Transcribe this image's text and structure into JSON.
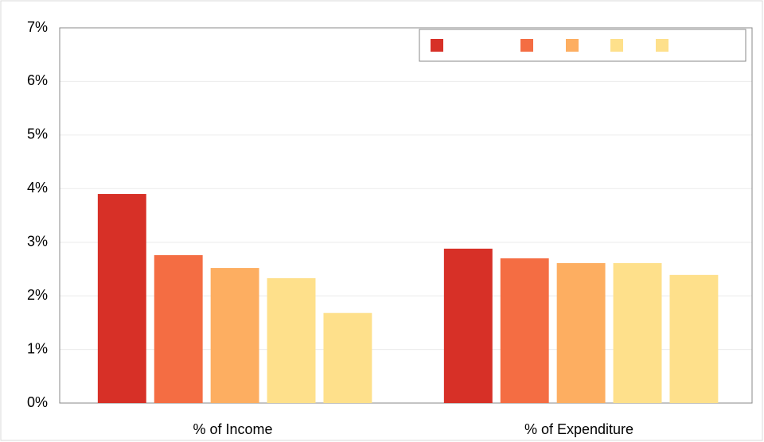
{
  "chart_data": {
    "type": "bar",
    "categories": [
      "% of Income",
      "% of Expenditure"
    ],
    "series": [
      {
        "color": "#d73027",
        "values": [
          3.9,
          2.88
        ]
      },
      {
        "color": "#f46d43",
        "values": [
          2.76,
          2.7
        ]
      },
      {
        "color": "#fdae61",
        "values": [
          2.52,
          2.61
        ]
      },
      {
        "color": "#fee08b",
        "values": [
          2.33,
          2.61
        ]
      },
      {
        "color": "#fee08b",
        "values": [
          1.68,
          2.39
        ]
      }
    ],
    "ylim": [
      0,
      7
    ],
    "yticks": [
      {
        "value": 0,
        "label": "0%"
      },
      {
        "value": 1,
        "label": "1%"
      },
      {
        "value": 2,
        "label": "2%"
      },
      {
        "value": 3,
        "label": "3%"
      },
      {
        "value": 4,
        "label": "4%"
      },
      {
        "value": 5,
        "label": "5%"
      },
      {
        "value": 6,
        "label": "6%"
      },
      {
        "value": 7,
        "label": "7%"
      }
    ],
    "grid": true,
    "legend": "top-right"
  }
}
